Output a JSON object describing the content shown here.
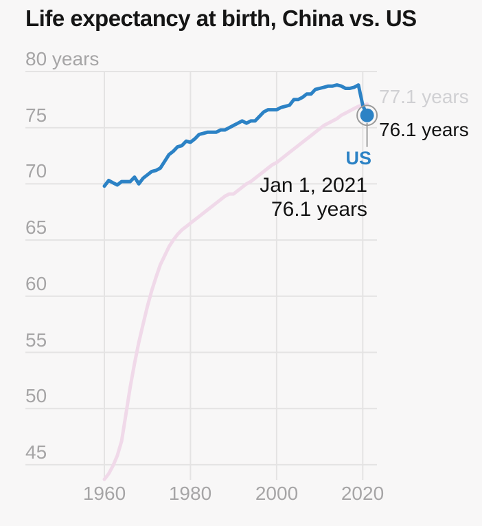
{
  "header": {
    "title": "Life expectancy at birth, China vs. US"
  },
  "colors": {
    "background": "#f8f7f7",
    "us_blue": "#2c82c5",
    "china_pink": "#f0d9e9",
    "gridline": "#e4e3e3",
    "axis_text": "#a6a5a6",
    "muted_label": "#d0d0d3",
    "dark_text": "#131313",
    "marker_ring": "#9a9a9a",
    "reference_line": "#b4b4b4"
  },
  "chart_data": {
    "type": "line",
    "title": "Life expectancy at birth, China vs. US",
    "xlabel": "",
    "ylabel": "years",
    "xlim": [
      1960,
      2021
    ],
    "ylim": [
      43.6,
      80
    ],
    "grid": true,
    "legend_position": "none",
    "x": [
      1960,
      1961,
      1962,
      1963,
      1964,
      1965,
      1966,
      1967,
      1968,
      1969,
      1970,
      1971,
      1972,
      1973,
      1974,
      1975,
      1976,
      1977,
      1978,
      1979,
      1980,
      1981,
      1982,
      1983,
      1984,
      1985,
      1986,
      1987,
      1988,
      1989,
      1990,
      1991,
      1992,
      1993,
      1994,
      1995,
      1996,
      1997,
      1998,
      1999,
      2000,
      2001,
      2002,
      2003,
      2004,
      2005,
      2006,
      2007,
      2008,
      2009,
      2010,
      2011,
      2012,
      2013,
      2014,
      2015,
      2016,
      2017,
      2018,
      2019,
      2020,
      2021
    ],
    "series": [
      {
        "name": "China",
        "color": "#f0d9e9",
        "values": [
          43.7,
          44.2,
          44.9,
          45.8,
          47.1,
          49.5,
          51.9,
          54.0,
          55.9,
          57.5,
          59.1,
          60.5,
          61.7,
          62.8,
          63.6,
          64.4,
          65.0,
          65.5,
          65.9,
          66.2,
          66.5,
          66.8,
          67.1,
          67.4,
          67.7,
          68.0,
          68.3,
          68.6,
          68.9,
          69.1,
          69.1,
          69.4,
          69.7,
          70.0,
          70.2,
          70.5,
          70.8,
          71.1,
          71.4,
          71.7,
          71.9,
          72.2,
          72.5,
          72.8,
          73.1,
          73.4,
          73.7,
          74.0,
          74.3,
          74.6,
          74.9,
          75.2,
          75.4,
          75.6,
          75.8,
          76.1,
          76.3,
          76.5,
          76.7,
          76.9,
          77.0,
          77.1
        ]
      },
      {
        "name": "US",
        "color": "#2c82c5",
        "values": [
          69.8,
          70.3,
          70.1,
          69.9,
          70.2,
          70.2,
          70.2,
          70.6,
          70.0,
          70.5,
          70.8,
          71.1,
          71.2,
          71.4,
          72.0,
          72.6,
          72.9,
          73.3,
          73.4,
          73.8,
          73.7,
          74.0,
          74.4,
          74.5,
          74.6,
          74.6,
          74.6,
          74.8,
          74.8,
          75.0,
          75.2,
          75.4,
          75.6,
          75.4,
          75.6,
          75.6,
          76.0,
          76.4,
          76.6,
          76.6,
          76.6,
          76.8,
          76.9,
          77.0,
          77.5,
          77.5,
          77.7,
          78.0,
          78.0,
          78.4,
          78.5,
          78.6,
          78.7,
          78.7,
          78.8,
          78.7,
          78.5,
          78.5,
          78.6,
          78.8,
          77.0,
          76.1
        ]
      }
    ],
    "y_ticks": [
      {
        "value": 80,
        "label": "80 years"
      },
      {
        "value": 75,
        "label": "75"
      },
      {
        "value": 70,
        "label": "70"
      },
      {
        "value": 65,
        "label": "65"
      },
      {
        "value": 60,
        "label": "60"
      },
      {
        "value": 55,
        "label": "55"
      },
      {
        "value": 50,
        "label": "50"
      },
      {
        "value": 45,
        "label": "45"
      }
    ],
    "x_ticks": [
      {
        "value": 1960,
        "label": "1960"
      },
      {
        "value": 1980,
        "label": "1980"
      },
      {
        "value": 2000,
        "label": "2000"
      },
      {
        "value": 2020,
        "label": "2020"
      }
    ]
  },
  "endpoint_labels": {
    "china": "77.1 years",
    "us": "76.1 years"
  },
  "tooltip": {
    "series_label": "US",
    "date": "Jan 1, 2021",
    "value": "76.1 years"
  },
  "marker": {
    "year": 2021,
    "value": 76.1
  }
}
